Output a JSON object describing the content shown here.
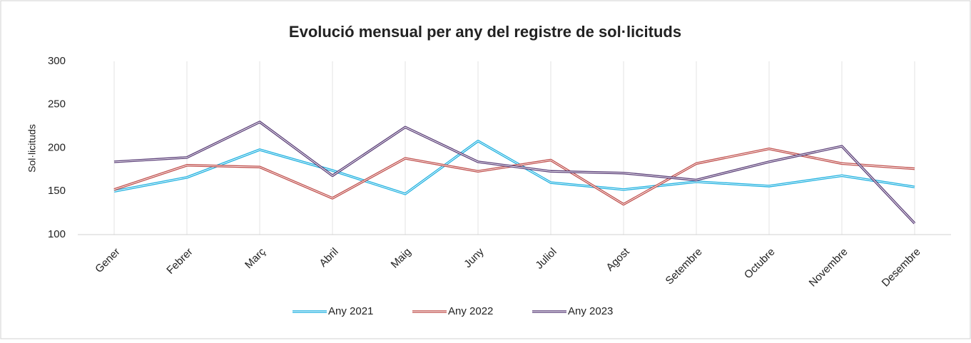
{
  "chart_data": {
    "type": "line",
    "title": "Evolució mensual per any del registre de sol·licituds",
    "y_label": "Sol·licituds",
    "categories": [
      "Gener",
      "Febrer",
      "Març",
      "Abril",
      "Maig",
      "Juny",
      "Juliol",
      "Agost",
      "Setembre",
      "Octubre",
      "Novembre",
      "Desembre"
    ],
    "series": [
      {
        "name": "Any 2021",
        "color": "#1fb1e0",
        "values": [
          150,
          166,
          198,
          174,
          147,
          208,
          160,
          152,
          161,
          156,
          168,
          155
        ]
      },
      {
        "name": "Any 2022",
        "color": "#c0504d",
        "values": [
          152,
          180,
          178,
          142,
          188,
          173,
          186,
          135,
          182,
          199,
          182,
          176
        ]
      },
      {
        "name": "Any 2023",
        "color": "#5b3f78",
        "values": [
          184,
          189,
          230,
          168,
          224,
          184,
          173,
          171,
          163,
          184,
          202,
          113
        ]
      }
    ],
    "ylim": [
      100,
      300
    ],
    "yticks": [
      100,
      150,
      200,
      250,
      300
    ],
    "legend": "bottom"
  }
}
